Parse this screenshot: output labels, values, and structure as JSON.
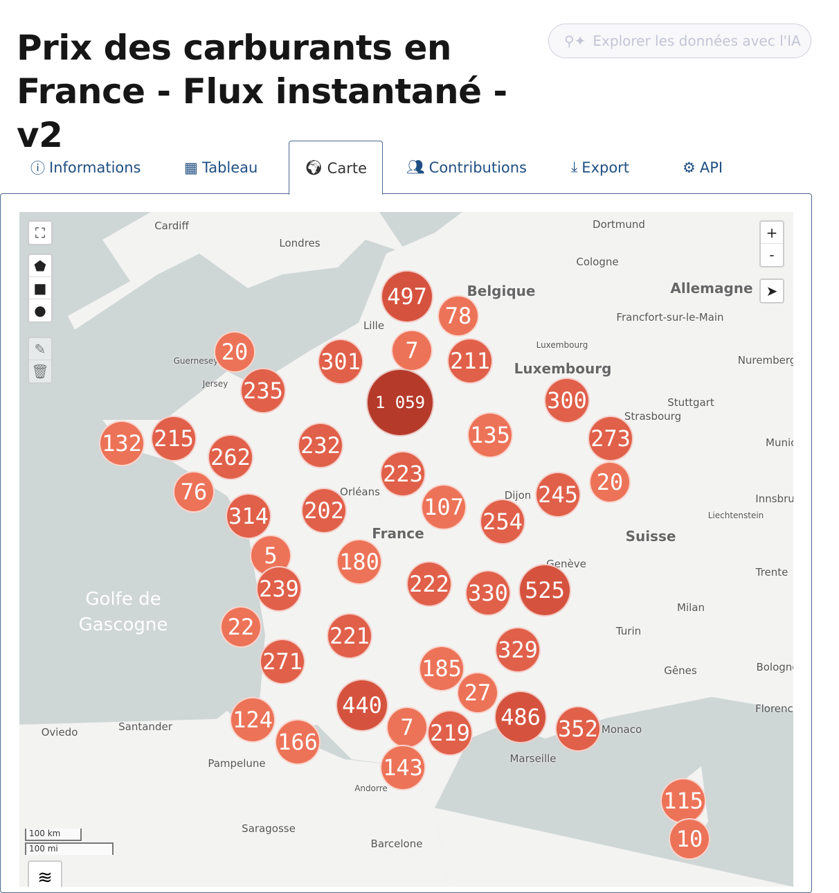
{
  "title": "Prix des carburants en France - Flux instantané - v2",
  "ai_button": {
    "label": "Explorer les données avec l'IA",
    "icon": "search-sparkle-icon"
  },
  "tabs": [
    {
      "label": "Informations",
      "icon": "info-circle-icon"
    },
    {
      "label": "Tableau",
      "icon": "table-icon"
    },
    {
      "label": "Carte",
      "icon": "globe-icon",
      "active": true
    },
    {
      "label": "Contributions",
      "icon": "users-icon"
    },
    {
      "label": "Export",
      "icon": "download-icon"
    },
    {
      "label": "API",
      "icon": "gears-icon"
    }
  ],
  "map": {
    "controls": {
      "zoom_in": "+",
      "zoom_out": "-"
    },
    "scale": {
      "km": "100 km",
      "mi": "100 mi"
    },
    "labels": [
      "Cardiff",
      "Londres",
      "Dortmund",
      "Cologne",
      "Allemagne",
      "Belgique",
      "Francfort-sur-le-Main",
      "Luxembourg",
      "Luxembourg",
      "Nuremberg",
      "Stuttgart",
      "Strasbourg",
      "Guernesey",
      "Jersey",
      "Orléans",
      "Dijon",
      "Liechtenstein",
      "Suisse",
      "Innsbruck",
      "Munich",
      "Genève",
      "Trente",
      "Milan",
      "Turin",
      "Gênes",
      "Bologne",
      "Florence",
      "Monaco",
      "Marseille",
      "Golfe de Gascogne",
      "Oviedo",
      "Santander",
      "Pampelune",
      "Andorre",
      "Saragosse",
      "Barcelone",
      "France",
      "Lille"
    ],
    "clusters": [
      "497",
      "78",
      "20",
      "301",
      "7",
      "211",
      "235",
      "1 059",
      "300",
      "132",
      "215",
      "262",
      "232",
      "135",
      "273",
      "76",
      "223",
      "20",
      "245",
      "314",
      "202",
      "107",
      "254",
      "5",
      "180",
      "222",
      "330",
      "525",
      "239",
      "22",
      "221",
      "271",
      "329",
      "185",
      "27",
      "440",
      "7",
      "219",
      "486",
      "352",
      "124",
      "166",
      "143",
      "115",
      "10"
    ],
    "colors": {
      "small": "#ec7358",
      "medium": "#e0604a",
      "large": "#d5533e",
      "xlarge": "#b53a2a",
      "sea": "#cfd6d6",
      "land": "#f3f3f2"
    }
  }
}
